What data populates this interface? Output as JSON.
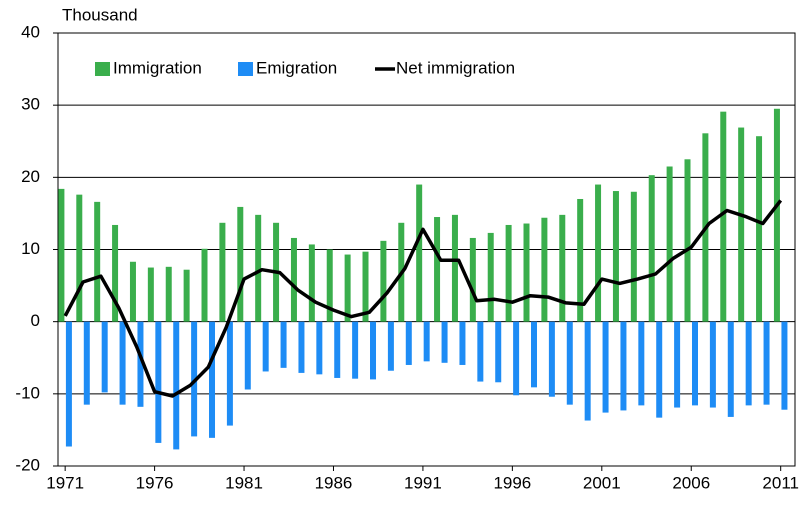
{
  "chart_data": {
    "type": "bar",
    "y_label": "Thousand",
    "x": [
      1971,
      1972,
      1973,
      1974,
      1975,
      1976,
      1977,
      1978,
      1979,
      1980,
      1981,
      1982,
      1983,
      1984,
      1985,
      1986,
      1987,
      1988,
      1989,
      1990,
      1991,
      1992,
      1993,
      1994,
      1995,
      1996,
      1997,
      1998,
      1999,
      2000,
      2001,
      2002,
      2003,
      2004,
      2005,
      2006,
      2007,
      2008,
      2009,
      2010,
      2011
    ],
    "series": [
      {
        "name": "Immigration",
        "type": "bar",
        "color": "#3aae4c",
        "values": [
          18.4,
          17.6,
          16.6,
          13.4,
          8.3,
          7.5,
          7.6,
          7.2,
          10.1,
          13.7,
          15.9,
          14.8,
          13.7,
          11.6,
          10.7,
          10.0,
          9.3,
          9.7,
          11.2,
          13.7,
          19.0,
          14.5,
          14.8,
          11.6,
          12.3,
          13.4,
          13.6,
          14.4,
          14.8,
          17.0,
          19.0,
          18.1,
          18.0,
          20.3,
          21.5,
          22.5,
          26.1,
          29.1,
          26.9,
          25.7,
          29.5
        ]
      },
      {
        "name": "Emigration",
        "type": "bar",
        "color": "#1e8cf5",
        "values": [
          -17.3,
          -11.5,
          -9.8,
          -11.5,
          -11.8,
          -16.8,
          -17.7,
          -15.9,
          -16.1,
          -14.4,
          -9.4,
          -6.9,
          -6.4,
          -7.1,
          -7.3,
          -7.8,
          -7.9,
          -8.0,
          -6.8,
          -6.0,
          -5.5,
          -5.7,
          -6.0,
          -8.3,
          -8.4,
          -10.2,
          -9.1,
          -10.4,
          -11.5,
          -13.7,
          -12.6,
          -12.3,
          -11.6,
          -13.3,
          -11.9,
          -11.6,
          -11.9,
          -13.2,
          -11.6,
          -11.5,
          -12.2
        ]
      },
      {
        "name": "Net immigration",
        "type": "line",
        "color": "#000000",
        "values": [
          0.8,
          5.5,
          6.3,
          1.9,
          -3.5,
          -9.7,
          -10.3,
          -8.8,
          -6.3,
          -0.8,
          5.9,
          7.2,
          6.8,
          4.4,
          2.7,
          1.6,
          0.7,
          1.3,
          4.0,
          7.4,
          12.8,
          8.5,
          8.5,
          2.9,
          3.1,
          2.7,
          3.6,
          3.4,
          2.6,
          2.4,
          5.9,
          5.3,
          5.9,
          6.6,
          8.8,
          10.3,
          13.6,
          15.4,
          14.6,
          13.6,
          16.8
        ]
      }
    ],
    "xlim": [
      1970.6,
      2011.8
    ],
    "xticks": [
      1971,
      1976,
      1981,
      1986,
      1991,
      1996,
      2001,
      2006,
      2011
    ],
    "ylim": [
      -20,
      40
    ],
    "yticks": [
      -20,
      -10,
      0,
      10,
      20,
      30,
      40
    ],
    "grid": true
  }
}
